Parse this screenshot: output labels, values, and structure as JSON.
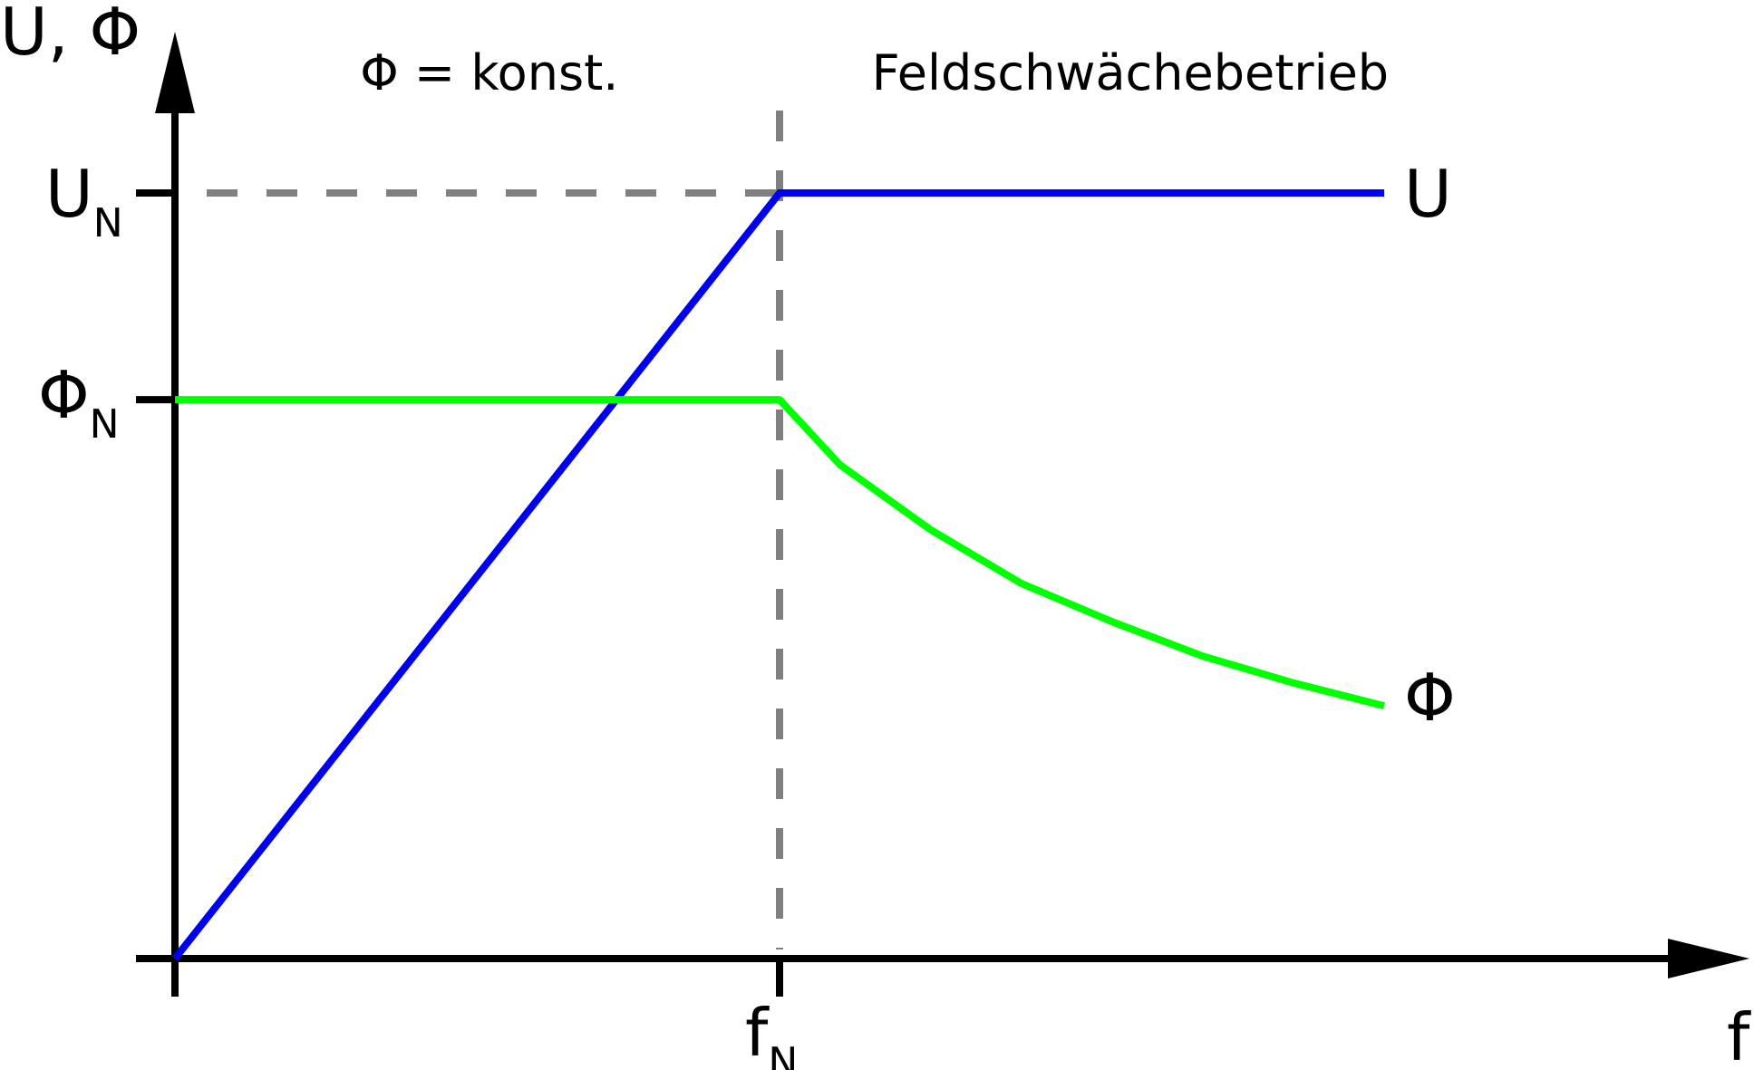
{
  "chart_data": {
    "type": "line",
    "title": "",
    "ylabel": "U, Φ",
    "xlabel": "f",
    "x_ticks": [
      {
        "main": "f",
        "sub": "N",
        "x": 1
      }
    ],
    "y_ticks": [
      {
        "main": "U",
        "sub": "N",
        "y": 1
      },
      {
        "main": "Φ",
        "sub": "N",
        "y": 0.73
      }
    ],
    "xlim": [
      0,
      2
    ],
    "ylim": [
      0,
      1.27
    ],
    "grid": false,
    "series": [
      {
        "name": "U",
        "color": "#0000ee",
        "x": [
          0,
          1,
          2
        ],
        "y": [
          0,
          1,
          1
        ]
      },
      {
        "name": "Φ",
        "color": "#00ff00",
        "x": [
          0,
          1,
          1.1,
          1.25,
          1.4,
          1.55,
          1.7,
          1.85,
          2
        ],
        "y": [
          0.73,
          0.73,
          0.645,
          0.56,
          0.49,
          0.44,
          0.395,
          0.36,
          0.33
        ]
      }
    ],
    "reference_lines": [
      {
        "kind": "horizontal",
        "y": 1,
        "x_to": 1,
        "color": "#808080",
        "style": "dashed"
      },
      {
        "kind": "vertical",
        "x": 1,
        "color": "#808080",
        "style": "dashed"
      }
    ],
    "annotations": [
      {
        "id": "const",
        "text": "Φ = konst.",
        "x": 0.52,
        "y": 1.135
      },
      {
        "id": "weak",
        "text": "Feldschwächebetrieb",
        "x": 1.58,
        "y": 1.135
      }
    ]
  }
}
